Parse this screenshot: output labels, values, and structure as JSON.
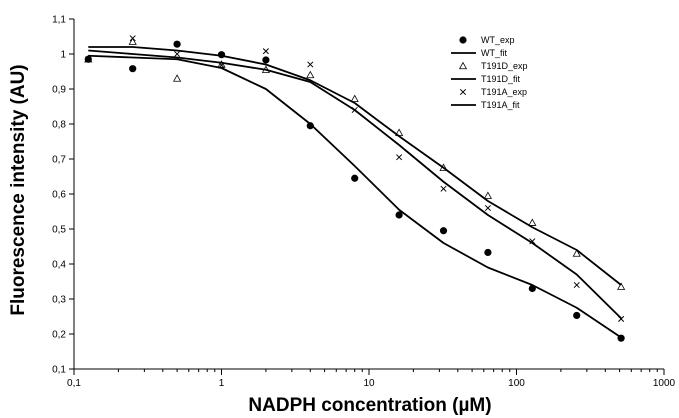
{
  "chart_data": {
    "type": "scatter",
    "title": "",
    "xlabel": "NADPH concentration (µM)",
    "ylabel": "Fluorescence intensity (AU)",
    "xscale": "log",
    "xlim": [
      0.1,
      1000
    ],
    "ylim": [
      0.1,
      1.1
    ],
    "x_ticks": [
      0.1,
      1,
      10,
      100,
      1000
    ],
    "x_tick_labels": [
      "0,1",
      "1",
      "10",
      "100",
      "1000"
    ],
    "y_ticks": [
      0.1,
      0.2,
      0.3,
      0.4,
      0.5,
      0.6,
      0.7,
      0.8,
      0.9,
      1.0,
      1.1
    ],
    "y_tick_labels": [
      "0,1",
      "0,2",
      "0,3",
      "0,4",
      "0,5",
      "0,6",
      "0,7",
      "0,8",
      "0,9",
      "1",
      "1,1"
    ],
    "grid": false,
    "legend_position": "top-right",
    "series": [
      {
        "name": "WT_exp",
        "kind": "points",
        "marker": "circle",
        "x": [
          0.125,
          0.25,
          0.5,
          1,
          2,
          4,
          8,
          16,
          32,
          64,
          128,
          256,
          512
        ],
        "y": [
          0.985,
          0.958,
          1.028,
          0.998,
          0.983,
          0.795,
          0.645,
          0.54,
          0.495,
          0.433,
          0.33,
          0.253,
          0.188
        ]
      },
      {
        "name": "WT_fit",
        "kind": "line",
        "x": [
          0.125,
          0.25,
          0.5,
          1,
          2,
          4,
          8,
          16,
          32,
          64,
          128,
          256,
          512
        ],
        "y": [
          0.995,
          0.99,
          0.985,
          0.96,
          0.9,
          0.8,
          0.68,
          0.555,
          0.46,
          0.39,
          0.34,
          0.275,
          0.19
        ]
      },
      {
        "name": "T191D_exp",
        "kind": "points",
        "marker": "triangle",
        "x": [
          0.125,
          0.25,
          0.5,
          1,
          2,
          4,
          8,
          16,
          32,
          64,
          128,
          256,
          512
        ],
        "y": [
          0.985,
          1.035,
          0.93,
          0.97,
          0.955,
          0.94,
          0.872,
          0.775,
          0.675,
          0.595,
          0.518,
          0.43,
          0.335
        ]
      },
      {
        "name": "T191D_fit",
        "kind": "line",
        "x": [
          0.125,
          0.25,
          0.5,
          1,
          2,
          4,
          8,
          16,
          32,
          64,
          128,
          256,
          512
        ],
        "y": [
          1.02,
          1.02,
          1.01,
          0.995,
          0.97,
          0.925,
          0.86,
          0.765,
          0.675,
          0.58,
          0.505,
          0.44,
          0.34
        ]
      },
      {
        "name": "T191A_exp",
        "kind": "points",
        "marker": "x",
        "x": [
          0.125,
          0.25,
          0.5,
          1,
          2,
          4,
          8,
          16,
          32,
          64,
          128,
          256,
          512
        ],
        "y": [
          0.985,
          1.045,
          1.0,
          0.968,
          1.008,
          0.97,
          0.84,
          0.705,
          0.615,
          0.56,
          0.465,
          0.34,
          0.243
        ]
      },
      {
        "name": "T191A_fit",
        "kind": "line",
        "x": [
          0.125,
          0.25,
          0.5,
          1,
          2,
          4,
          8,
          16,
          32,
          64,
          128,
          256,
          512
        ],
        "y": [
          1.01,
          1.0,
          0.99,
          0.975,
          0.955,
          0.92,
          0.84,
          0.74,
          0.635,
          0.54,
          0.46,
          0.37,
          0.245
        ]
      }
    ]
  }
}
